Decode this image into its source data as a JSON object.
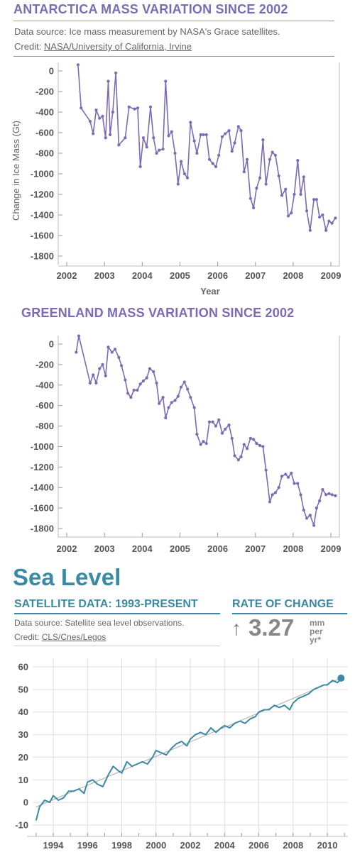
{
  "antarctica": {
    "title": "ANTARCTICA MASS VARIATION SINCE 2002",
    "source_text": "Data source: Ice mass measurement by NASA's Grace satellites.",
    "credit_prefix": "Credit: ",
    "credit_link": "NASA/University of California, Irvine"
  },
  "greenland": {
    "title": "GREENLAND MASS VARIATION SINCE 2002"
  },
  "sea": {
    "section_title": "Sea Level",
    "subtitle": "SATELLITE DATA: 1993-PRESENT",
    "rate_title": "RATE OF CHANGE",
    "source_text": "Data source: Satellite sea level observations.",
    "credit_prefix": "Credit: ",
    "credit_link": "CLS/Cnes/Legos",
    "rate_arrow": "↑",
    "rate_value": "3.27",
    "rate_unit_top": "mm",
    "rate_unit_bottom": "per yr*"
  },
  "colors": {
    "ice": "#7b6bb5",
    "sea": "#3a8aa5",
    "trend": "#aaaaaa",
    "axis": "#999999"
  },
  "chart_data": [
    {
      "type": "line",
      "title": "ANTARCTICA MASS VARIATION SINCE 2002",
      "xlabel": "Year",
      "ylabel": "Change in Ice Mass (Gt)",
      "xlim": [
        2002,
        2009.3
      ],
      "ylim": [
        -1800,
        0
      ],
      "xticks": [
        "2002",
        "2003",
        "2004",
        "2005",
        "2006",
        "2007",
        "2008",
        "2009"
      ],
      "yticks": [
        "0",
        "-200",
        "-400",
        "-600",
        "-800",
        "-1000",
        "-1200",
        "-1400",
        "-1600",
        "-1800"
      ],
      "grid": false,
      "x": [
        2002.3,
        2002.38,
        2002.62,
        2002.7,
        2002.78,
        2002.87,
        2002.95,
        2003.03,
        2003.1,
        2003.15,
        2003.22,
        2003.3,
        2003.38,
        2003.55,
        2003.65,
        2003.8,
        2003.88,
        2003.95,
        2004.03,
        2004.12,
        2004.22,
        2004.3,
        2004.38,
        2004.45,
        2004.55,
        2004.62,
        2004.7,
        2004.78,
        2004.87,
        2004.95,
        2005.03,
        2005.12,
        2005.2,
        2005.28,
        2005.38,
        2005.45,
        2005.55,
        2005.62,
        2005.7,
        2005.78,
        2005.87,
        2005.95,
        2006.03,
        2006.12,
        2006.2,
        2006.3,
        2006.38,
        2006.45,
        2006.55,
        2006.62,
        2006.7,
        2006.78,
        2006.87,
        2006.95,
        2007.03,
        2007.12,
        2007.2,
        2007.28,
        2007.38,
        2007.45,
        2007.53,
        2007.62,
        2007.7,
        2007.8,
        2007.87,
        2007.95,
        2008.03,
        2008.12,
        2008.2,
        2008.28,
        2008.36,
        2008.45,
        2008.55,
        2008.62,
        2008.7,
        2008.78,
        2008.87,
        2008.95,
        2009.03,
        2009.12
      ],
      "values": [
        60,
        -360,
        -490,
        -610,
        -380,
        -460,
        -440,
        -650,
        -100,
        -620,
        -400,
        -20,
        -720,
        -650,
        -350,
        -370,
        -360,
        -930,
        -650,
        -740,
        -350,
        -650,
        -800,
        -770,
        -760,
        -100,
        -630,
        -590,
        -800,
        -1100,
        -880,
        -1000,
        -1040,
        -500,
        -680,
        -800,
        -620,
        -620,
        -620,
        -860,
        -900,
        -930,
        -820,
        -640,
        -610,
        -580,
        -780,
        -700,
        -540,
        -580,
        -980,
        -860,
        -1240,
        -1330,
        -1140,
        -1040,
        -670,
        -1100,
        -860,
        -790,
        -820,
        -1020,
        -1210,
        -1150,
        -1410,
        -1380,
        -1200,
        -870,
        -1200,
        -1030,
        -1360,
        -1550,
        -1250,
        -1250,
        -1420,
        -1400,
        -1550,
        -1460,
        -1480,
        -1430
      ]
    },
    {
      "type": "line",
      "title": "GREENLAND MASS VARIATION SINCE 2002",
      "xlim": [
        2002,
        2009.3
      ],
      "ylim": [
        -1800,
        0
      ],
      "xticks": [
        "2002",
        "2003",
        "2004",
        "2005",
        "2006",
        "2007",
        "2008",
        "2009"
      ],
      "yticks": [
        "0",
        "-200",
        "-400",
        "-600",
        "-800",
        "-1000",
        "-1200",
        "-1400",
        "-1600",
        "-1800"
      ],
      "grid": false,
      "x": [
        2002.25,
        2002.32,
        2002.62,
        2002.7,
        2002.78,
        2002.87,
        2002.95,
        2003.03,
        2003.1,
        2003.2,
        2003.28,
        2003.38,
        2003.45,
        2003.55,
        2003.62,
        2003.7,
        2003.78,
        2003.87,
        2003.95,
        2004.03,
        2004.12,
        2004.2,
        2004.3,
        2004.38,
        2004.45,
        2004.55,
        2004.62,
        2004.7,
        2004.78,
        2004.87,
        2004.95,
        2005.03,
        2005.12,
        2005.2,
        2005.28,
        2005.38,
        2005.45,
        2005.55,
        2005.62,
        2005.7,
        2005.78,
        2005.87,
        2005.95,
        2006.03,
        2006.12,
        2006.2,
        2006.3,
        2006.38,
        2006.45,
        2006.55,
        2006.62,
        2006.7,
        2006.78,
        2006.87,
        2006.95,
        2007.03,
        2007.12,
        2007.2,
        2007.28,
        2007.38,
        2007.45,
        2007.53,
        2007.62,
        2007.7,
        2007.8,
        2007.87,
        2007.95,
        2008.03,
        2008.12,
        2008.2,
        2008.28,
        2008.36,
        2008.45,
        2008.55,
        2008.62,
        2008.7,
        2008.78,
        2008.87,
        2008.95,
        2009.03,
        2009.12
      ],
      "values": [
        -80,
        80,
        -380,
        -300,
        -380,
        -240,
        -200,
        -310,
        -30,
        -80,
        -50,
        -130,
        -210,
        -350,
        -480,
        -520,
        -450,
        -450,
        -390,
        -360,
        -330,
        -240,
        -270,
        -380,
        -580,
        -520,
        -720,
        -620,
        -570,
        -550,
        -510,
        -420,
        -370,
        -440,
        -520,
        -620,
        -880,
        -980,
        -950,
        -970,
        -760,
        -760,
        -800,
        -740,
        -870,
        -830,
        -790,
        -920,
        -1090,
        -1130,
        -1100,
        -980,
        -1020,
        -920,
        -930,
        -970,
        -990,
        -1000,
        -1230,
        -1540,
        -1470,
        -1450,
        -1400,
        -1290,
        -1270,
        -1300,
        -1260,
        -1360,
        -1360,
        -1470,
        -1620,
        -1700,
        -1670,
        -1770,
        -1600,
        -1530,
        -1420,
        -1470,
        -1460,
        -1470,
        -1480
      ]
    },
    {
      "type": "line",
      "title": "SATELLITE DATA: 1993-PRESENT",
      "xlim": [
        1992.8,
        2011.2
      ],
      "ylim": [
        -10,
        60
      ],
      "xticks": [
        "1994",
        "1996",
        "1998",
        "2000",
        "2002",
        "2004",
        "2006",
        "2008",
        "2010"
      ],
      "yticks": [
        "60",
        "50",
        "40",
        "30",
        "20",
        "10",
        "0",
        "-10"
      ],
      "grid": true,
      "trend_line": {
        "x": [
          1993.0,
          2010.8
        ],
        "values": [
          -2,
          55
        ]
      },
      "x": [
        1993.0,
        1993.2,
        1993.5,
        1993.8,
        1994.0,
        1994.3,
        1994.6,
        1994.9,
        1995.2,
        1995.5,
        1995.8,
        1996.0,
        1996.3,
        1996.6,
        1996.9,
        1997.2,
        1997.5,
        1997.8,
        1998.0,
        1998.3,
        1998.6,
        1998.9,
        1999.2,
        1999.5,
        1999.8,
        2000.0,
        2000.3,
        2000.6,
        2000.9,
        2001.2,
        2001.5,
        2001.8,
        2002.0,
        2002.3,
        2002.6,
        2002.9,
        2003.2,
        2003.5,
        2003.8,
        2004.0,
        2004.3,
        2004.6,
        2004.9,
        2005.2,
        2005.5,
        2005.8,
        2006.0,
        2006.3,
        2006.6,
        2006.9,
        2007.2,
        2007.5,
        2007.8,
        2008.0,
        2008.3,
        2008.6,
        2008.9,
        2009.2,
        2009.5,
        2009.8,
        2010.0,
        2010.3,
        2010.6,
        2010.8
      ],
      "values": [
        -8,
        -2,
        1,
        0,
        3,
        1,
        2,
        5,
        5,
        6,
        4,
        9,
        10,
        8,
        7,
        12,
        16,
        14,
        13,
        18,
        16,
        17,
        18,
        17,
        20,
        23,
        22,
        21,
        24,
        26,
        27,
        25,
        28,
        30,
        31,
        30,
        33,
        31,
        33,
        34,
        33,
        35,
        36,
        35,
        37,
        38,
        40,
        41,
        41,
        43,
        42,
        43,
        41,
        44,
        46,
        47,
        48,
        50,
        51,
        52,
        52,
        54,
        53,
        55
      ]
    }
  ]
}
